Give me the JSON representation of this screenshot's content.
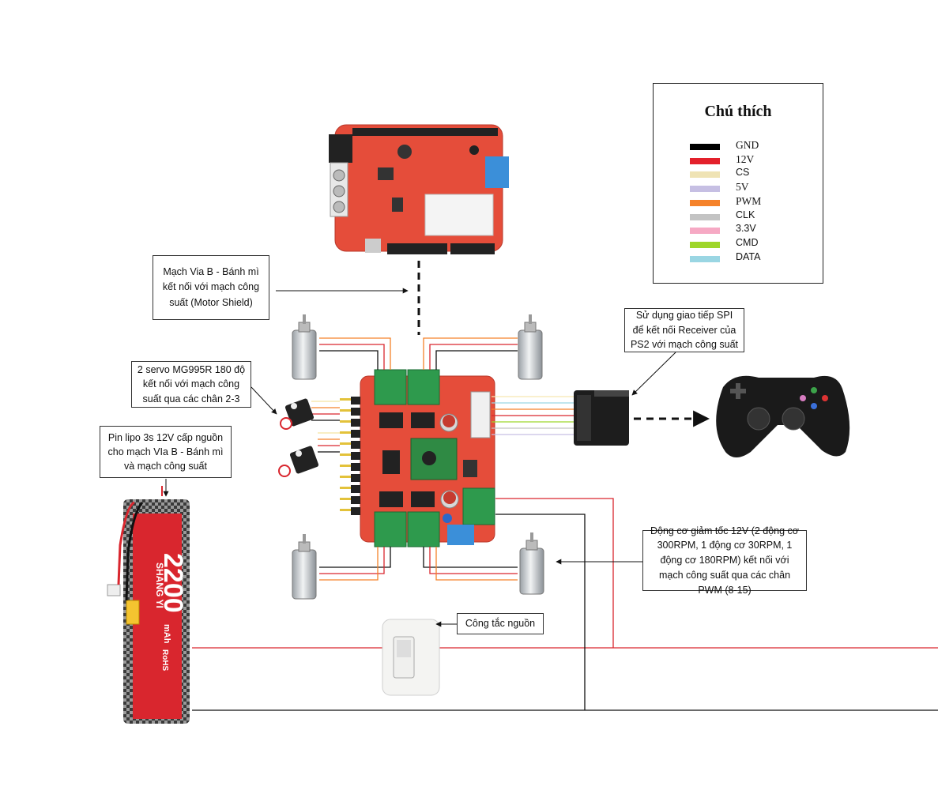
{
  "legend": {
    "title": "Chú thích",
    "items": [
      {
        "label": "GND",
        "color": "#000000"
      },
      {
        "label": "12V",
        "color": "#e3202b"
      },
      {
        "label": "CS",
        "color": "#efe3b4"
      },
      {
        "label": "5V",
        "color": "#c6bfe3"
      },
      {
        "label": "PWM",
        "color": "#f5822a"
      },
      {
        "label": "CLK",
        "color": "#c3c3c3"
      },
      {
        "label": "3.3V",
        "color": "#f6a9c4"
      },
      {
        "label": "CMD",
        "color": "#9ed62a"
      },
      {
        "label": "DATA",
        "color": "#9ad6e3"
      }
    ]
  },
  "notes": {
    "via_b": "Mạch Via B - Bánh mì kết nối với mạch công suất (Motor Shield)",
    "servo": "2 servo MG995R 180 độ kết nối với mạch công suất qua các chân 2-3",
    "battery": "Pin lipo 3s 12V cấp nguồn cho mạch VIa B - Bánh mì và mạch công suất",
    "spi": "Sử dụng giao tiếp SPI để kết nối Receiver của PS2 với mạch công suất",
    "motor": "Động cơ giảm tốc 12V (2 động cơ 300RPM, 1 động cơ 30RPM, 1 động cơ 180RPM) kết nối với mạch công suất qua các chân PWM (8-15)",
    "switch": "Công tắc nguồn"
  },
  "battery_label": {
    "brand": "SHANG YI",
    "capacity": "2200",
    "unit": "mAh",
    "rohs": "RoHS"
  }
}
